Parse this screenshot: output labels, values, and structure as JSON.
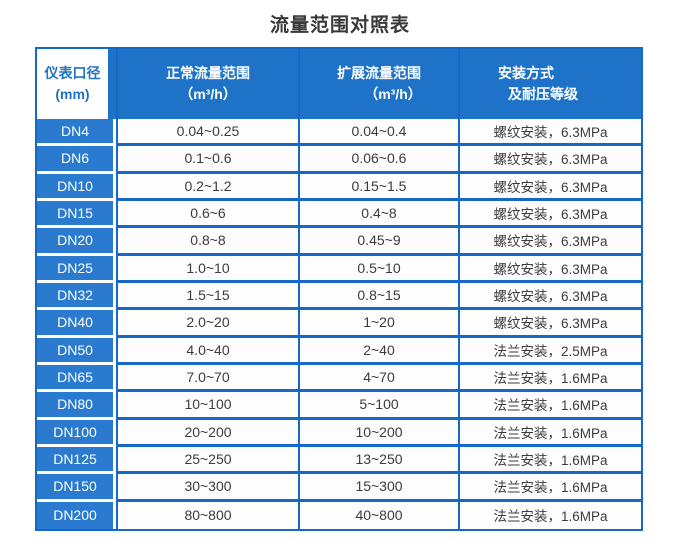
{
  "title": "流量范围对照表",
  "colors": {
    "header_blue": "#1e73c8",
    "cell_blue": "#2a7ad0",
    "border_blue": "#1568c6",
    "header_cell_text": "#1e73c8",
    "data_text": "#3c3c3c",
    "title_text": "#383838"
  },
  "table": {
    "headers": [
      {
        "line1": "仪表口径",
        "line2": "(mm)"
      },
      {
        "line1": "正常流量范围",
        "line2": "（m³/h）"
      },
      {
        "line1": "扩展流量范围",
        "line2": "（m³/h）"
      },
      {
        "line1": "安装方式",
        "line2": "及耐压等级"
      }
    ],
    "rows": [
      {
        "dn": "DN4",
        "normal": "0.04~0.25",
        "extended": "0.04~0.4",
        "install": "螺纹安装，6.3MPa"
      },
      {
        "dn": "DN6",
        "normal": "0.1~0.6",
        "extended": "0.06~0.6",
        "install": "螺纹安装，6.3MPa"
      },
      {
        "dn": "DN10",
        "normal": "0.2~1.2",
        "extended": "0.15~1.5",
        "install": "螺纹安装，6.3MPa"
      },
      {
        "dn": "DN15",
        "normal": "0.6~6",
        "extended": "0.4~8",
        "install": "螺纹安装，6.3MPa"
      },
      {
        "dn": "DN20",
        "normal": "0.8~8",
        "extended": "0.45~9",
        "install": "螺纹安装，6.3MPa"
      },
      {
        "dn": "DN25",
        "normal": "1.0~10",
        "extended": "0.5~10",
        "install": "螺纹安装，6.3MPa"
      },
      {
        "dn": "DN32",
        "normal": "1.5~15",
        "extended": "0.8~15",
        "install": "螺纹安装，6.3MPa"
      },
      {
        "dn": "DN40",
        "normal": "2.0~20",
        "extended": "1~20",
        "install": "螺纹安装，6.3MPa"
      },
      {
        "dn": "DN50",
        "normal": "4.0~40",
        "extended": "2~40",
        "install": "法兰安装，2.5MPa"
      },
      {
        "dn": "DN65",
        "normal": "7.0~70",
        "extended": "4~70",
        "install": "法兰安装，1.6MPa"
      },
      {
        "dn": "DN80",
        "normal": "10~100",
        "extended": "5~100",
        "install": "法兰安装，1.6MPa"
      },
      {
        "dn": "DN100",
        "normal": "20~200",
        "extended": "10~200",
        "install": "法兰安装，1.6MPa"
      },
      {
        "dn": "DN125",
        "normal": "25~250",
        "extended": "13~250",
        "install": "法兰安装，1.6MPa"
      },
      {
        "dn": "DN150",
        "normal": "30~300",
        "extended": "15~300",
        "install": "法兰安装，1.6MPa"
      },
      {
        "dn": "DN200",
        "normal": "80~800",
        "extended": "40~800",
        "install": "法兰安装，1.6MPa"
      }
    ]
  }
}
